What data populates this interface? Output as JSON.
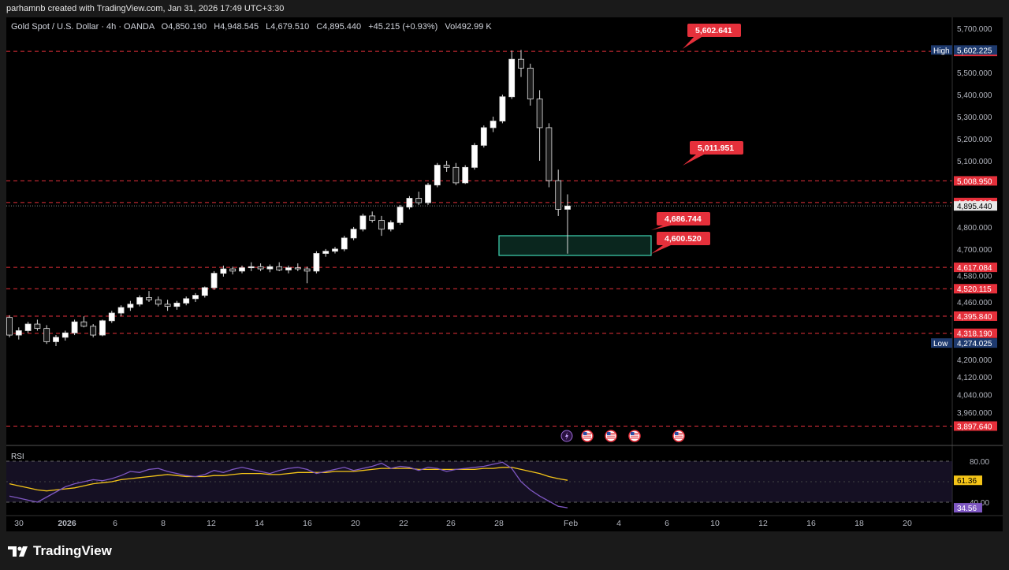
{
  "attribution": "parhamnb created with TradingView.com, Jan 31, 2026 17:49 UTC+3:30",
  "header": {
    "symbol": "Gold Spot / U.S. Dollar · 4h · OANDA",
    "open": "O4,850.190",
    "high": "H4,948.545",
    "low": "L4,679.510",
    "close": "C4,895.440",
    "change": "+45.215 (+0.93%)",
    "volume": "Vol492.99 K"
  },
  "colors": {
    "level_red": "#e5303b",
    "green_box": "#26a69a",
    "rsi_line": "#7e57c2",
    "rsi_ma": "#f5c518",
    "candle": "#ffffff"
  },
  "price_axis": {
    "ticks": [
      "5,700.000",
      "5,500.000",
      "5,400.000",
      "5,300.000",
      "5,200.000",
      "5,100.000",
      "4,800.000",
      "4,700.000",
      "4,580.000",
      "4,460.000",
      "4,200.000",
      "4,120.000",
      "4,040.000",
      "3,960.000"
    ],
    "high_label": "High",
    "high_value": "5,602.225",
    "low_label": "Low",
    "low_value": "4,274.025",
    "current": "4,895.440"
  },
  "levels": [
    "5,595.933",
    "5,008.950",
    "4,910.912",
    "4,617.084",
    "4,520.115",
    "4,395.840",
    "4,318.190",
    "3,897.640"
  ],
  "callouts": [
    "5,602.641",
    "5,011.951",
    "4,686.744",
    "4,600.520"
  ],
  "time_axis": [
    "30",
    "2026",
    "6",
    "8",
    "12",
    "14",
    "16",
    "20",
    "22",
    "26",
    "28",
    "Feb",
    "4",
    "6",
    "10",
    "12",
    "16",
    "18",
    "20"
  ],
  "rsi": {
    "label": "RSI",
    "upper": "80.00",
    "lower": "40.00",
    "rsi_value": "34.56",
    "ma_value": "61.36"
  },
  "brand": "TradingView",
  "chart_data": {
    "type": "candlestick",
    "title": "Gold Spot / U.S. Dollar · 4h · OANDA",
    "ylim": [
      3880,
      5720
    ],
    "x_range": [
      "Dec 30",
      "Feb 21"
    ],
    "candles": [
      [
        4390,
        4400,
        4300,
        4310
      ],
      [
        4310,
        4345,
        4290,
        4330
      ],
      [
        4330,
        4370,
        4320,
        4360
      ],
      [
        4360,
        4380,
        4330,
        4340
      ],
      [
        4340,
        4355,
        4270,
        4280
      ],
      [
        4280,
        4310,
        4260,
        4300
      ],
      [
        4300,
        4330,
        4285,
        4320
      ],
      [
        4320,
        4380,
        4310,
        4370
      ],
      [
        4370,
        4395,
        4345,
        4350
      ],
      [
        4350,
        4360,
        4300,
        4310
      ],
      [
        4310,
        4380,
        4305,
        4375
      ],
      [
        4375,
        4420,
        4365,
        4410
      ],
      [
        4410,
        4445,
        4395,
        4435
      ],
      [
        4435,
        4465,
        4420,
        4450
      ],
      [
        4450,
        4490,
        4440,
        4480
      ],
      [
        4480,
        4510,
        4460,
        4470
      ],
      [
        4470,
        4485,
        4440,
        4450
      ],
      [
        4450,
        4470,
        4420,
        4440
      ],
      [
        4440,
        4465,
        4425,
        4455
      ],
      [
        4455,
        4485,
        4445,
        4475
      ],
      [
        4475,
        4500,
        4460,
        4490
      ],
      [
        4490,
        4530,
        4480,
        4525
      ],
      [
        4525,
        4600,
        4515,
        4590
      ],
      [
        4590,
        4625,
        4575,
        4610
      ],
      [
        4610,
        4620,
        4585,
        4600
      ],
      [
        4600,
        4625,
        4590,
        4615
      ],
      [
        4615,
        4640,
        4600,
        4620
      ],
      [
        4620,
        4635,
        4600,
        4610
      ],
      [
        4610,
        4630,
        4595,
        4620
      ],
      [
        4620,
        4640,
        4600,
        4605
      ],
      [
        4605,
        4625,
        4590,
        4615
      ],
      [
        4615,
        4635,
        4600,
        4610
      ],
      [
        4610,
        4620,
        4545,
        4600
      ],
      [
        4600,
        4690,
        4590,
        4680
      ],
      [
        4680,
        4700,
        4665,
        4690
      ],
      [
        4690,
        4710,
        4680,
        4700
      ],
      [
        4700,
        4760,
        4690,
        4750
      ],
      [
        4750,
        4800,
        4740,
        4790
      ],
      [
        4790,
        4860,
        4780,
        4850
      ],
      [
        4850,
        4870,
        4820,
        4830
      ],
      [
        4830,
        4850,
        4760,
        4790
      ],
      [
        4790,
        4830,
        4780,
        4820
      ],
      [
        4820,
        4900,
        4810,
        4890
      ],
      [
        4890,
        4940,
        4880,
        4930
      ],
      [
        4930,
        4960,
        4900,
        4910
      ],
      [
        4910,
        5000,
        4900,
        4990
      ],
      [
        4990,
        5090,
        4980,
        5080
      ],
      [
        5080,
        5100,
        5050,
        5070
      ],
      [
        5070,
        5090,
        4990,
        5000
      ],
      [
        5000,
        5080,
        4995,
        5070
      ],
      [
        5070,
        5180,
        5060,
        5170
      ],
      [
        5170,
        5260,
        5160,
        5250
      ],
      [
        5250,
        5300,
        5230,
        5280
      ],
      [
        5280,
        5400,
        5270,
        5390
      ],
      [
        5390,
        5600,
        5380,
        5560
      ],
      [
        5560,
        5602,
        5480,
        5520
      ],
      [
        5520,
        5540,
        5350,
        5380
      ],
      [
        5380,
        5420,
        5100,
        5250
      ],
      [
        5250,
        5270,
        4980,
        5010
      ],
      [
        5010,
        5060,
        4850,
        4880
      ],
      [
        4880,
        4948,
        4679,
        4895
      ]
    ],
    "rsi_series": [
      46,
      44,
      42,
      40,
      45,
      50,
      55,
      58,
      60,
      62,
      61,
      63,
      66,
      70,
      69,
      72,
      73,
      70,
      68,
      66,
      65,
      67,
      71,
      69,
      72,
      74,
      72,
      70,
      68,
      71,
      73,
      74,
      72,
      68,
      70,
      72,
      74,
      71,
      73,
      75,
      78,
      73,
      75,
      74,
      71,
      74,
      73,
      70,
      72,
      73,
      74,
      75,
      77,
      79,
      73,
      60,
      52,
      46,
      41,
      36,
      34.56
    ],
    "rsi_ma_series": [
      58,
      56,
      54,
      52,
      51,
      52,
      53,
      54,
      56,
      58,
      59,
      60,
      62,
      63,
      64,
      65,
      66,
      67,
      66,
      65,
      65,
      65,
      66,
      66,
      67,
      68,
      68,
      68,
      67,
      67,
      68,
      69,
      69,
      69,
      69,
      70,
      70,
      70,
      71,
      72,
      73,
      73,
      73,
      73,
      72,
      72,
      72,
      72,
      72,
      72,
      72,
      73,
      73,
      74,
      74,
      72,
      70,
      68,
      65,
      63,
      61.36
    ],
    "rsi_ylim": [
      30,
      90
    ]
  }
}
